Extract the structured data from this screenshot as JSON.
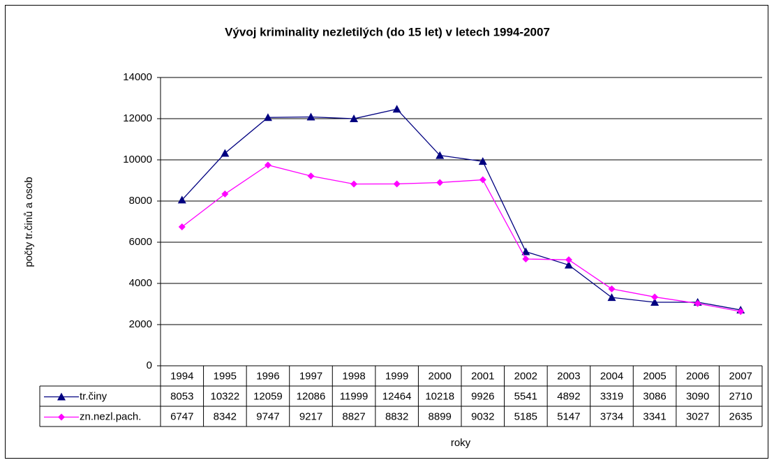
{
  "chart_data": {
    "type": "line",
    "title": "Vývoj kriminality nezletilých (do 15 let) v letech 1994-2007",
    "x_label": "roky",
    "y_label": "počty tr.činů a osob",
    "categories": [
      "1994",
      "1995",
      "1996",
      "1997",
      "1998",
      "1999",
      "2000",
      "2001",
      "2002",
      "2003",
      "2004",
      "2005",
      "2006",
      "2007"
    ],
    "series": [
      {
        "name": "tr.činy",
        "color": "#000080",
        "marker": "triangle",
        "values": [
          8053,
          10322,
          12059,
          12086,
          11999,
          12464,
          10218,
          9926,
          5541,
          4892,
          3319,
          3086,
          3090,
          2710
        ]
      },
      {
        "name": "zn.nezl.pach.",
        "color": "#ff00ff",
        "marker": "diamond",
        "values": [
          6747,
          8342,
          9747,
          9217,
          8827,
          8832,
          8899,
          9032,
          5185,
          5147,
          3734,
          3341,
          3027,
          2635
        ]
      }
    ],
    "ylim": [
      0,
      14000
    ],
    "yticks": [
      0,
      2000,
      4000,
      6000,
      8000,
      10000,
      12000,
      14000
    ],
    "grid": true
  }
}
